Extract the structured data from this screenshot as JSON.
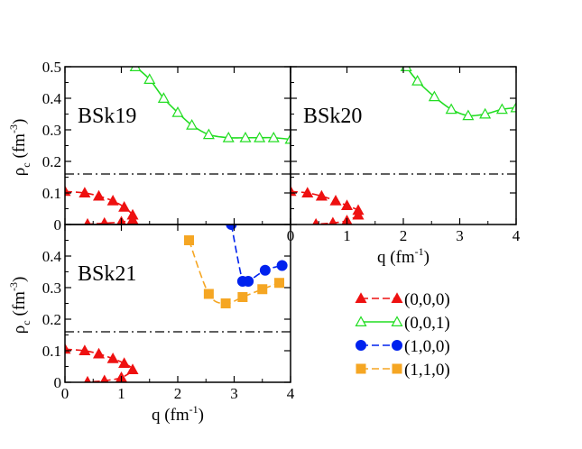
{
  "chart_data": [
    {
      "type": "line",
      "panel_label": "BSk19",
      "xlim": [
        0,
        4
      ],
      "ylim": [
        0,
        0.5
      ],
      "xticks": [
        "0",
        "1",
        "2",
        "3",
        "4"
      ],
      "yticks": [
        "0",
        "0.1",
        "0.2",
        "0.3",
        "0.4",
        "0.5"
      ],
      "ylabel": {
        "main": "ρ",
        "sub": "c",
        "unit": "(fm",
        "exp": "-3",
        "close": ")"
      },
      "reference_line": 0.16,
      "series": [
        {
          "name": "(0,0,0)",
          "color": "#ee1111",
          "marker": "triangle-filled",
          "dash": true,
          "x": [
            0.0,
            0.35,
            0.6,
            0.85,
            1.05,
            1.2,
            1.2,
            1.0,
            0.7,
            0.4
          ],
          "y": [
            0.105,
            0.1,
            0.09,
            0.075,
            0.055,
            0.03,
            0.015,
            0.008,
            0.004,
            0.001
          ]
        },
        {
          "name": "(0,0,1)",
          "color": "#22dd22",
          "marker": "triangle-open",
          "dash": false,
          "x": [
            1.25,
            1.5,
            1.75,
            2.0,
            2.25,
            2.55,
            2.9,
            3.2,
            3.45,
            3.7,
            4.0
          ],
          "y": [
            0.5,
            0.46,
            0.4,
            0.355,
            0.315,
            0.285,
            0.275,
            0.275,
            0.275,
            0.275,
            0.27
          ]
        }
      ]
    },
    {
      "type": "line",
      "panel_label": "BSk20",
      "xlim": [
        0,
        4
      ],
      "ylim": [
        0,
        0.5
      ],
      "xticks": [
        "0",
        "1",
        "2",
        "3",
        "4"
      ],
      "xlabel": {
        "main": "q (fm",
        "exp": "-1",
        "close": ")"
      },
      "reference_line": 0.16,
      "series": [
        {
          "name": "(0,0,0)",
          "color": "#ee1111",
          "marker": "triangle-filled",
          "dash": true,
          "x": [
            0.0,
            0.3,
            0.55,
            0.8,
            1.0,
            1.2,
            1.2,
            1.0,
            0.75,
            0.45
          ],
          "y": [
            0.105,
            0.1,
            0.09,
            0.075,
            0.06,
            0.045,
            0.03,
            0.012,
            0.005,
            0.001
          ]
        },
        {
          "name": "(0,0,1)",
          "color": "#22dd22",
          "marker": "triangle-open",
          "dash": false,
          "x": [
            2.05,
            2.25,
            2.55,
            2.85,
            3.15,
            3.45,
            3.75,
            4.0
          ],
          "y": [
            0.5,
            0.455,
            0.405,
            0.365,
            0.345,
            0.35,
            0.365,
            0.37
          ]
        }
      ]
    },
    {
      "type": "line",
      "panel_label": "BSk21",
      "xlim": [
        0,
        4
      ],
      "ylim": [
        0,
        0.5
      ],
      "xticks": [
        "0",
        "1",
        "2",
        "3",
        "4"
      ],
      "yticks": [
        "0",
        "0.1",
        "0.2",
        "0.3",
        "0.4"
      ],
      "xlabel": {
        "main": "q (fm",
        "exp": "-1",
        "close": ")"
      },
      "ylabel": {
        "main": "ρ",
        "sub": "c",
        "unit": "(fm",
        "exp": "-3",
        "close": ")"
      },
      "reference_line": 0.16,
      "series": [
        {
          "name": "(0,0,0)",
          "color": "#ee1111",
          "marker": "triangle-filled",
          "dash": true,
          "x": [
            0.0,
            0.35,
            0.6,
            0.85,
            1.05,
            1.2,
            1.0,
            0.7,
            0.4
          ],
          "y": [
            0.105,
            0.1,
            0.09,
            0.075,
            0.06,
            0.04,
            0.015,
            0.005,
            0.001
          ]
        },
        {
          "name": "(1,0,0)",
          "color": "#0022ee",
          "marker": "circle-filled",
          "dash": true,
          "x": [
            2.95,
            3.15,
            3.25,
            3.55,
            3.85
          ],
          "y": [
            0.5,
            0.32,
            0.32,
            0.355,
            0.37
          ]
        },
        {
          "name": "(1,1,0)",
          "color": "#f5a623",
          "marker": "square-filled",
          "dash": true,
          "x": [
            2.2,
            2.55,
            2.85,
            3.15,
            3.5,
            3.8
          ],
          "y": [
            0.45,
            0.28,
            0.25,
            0.27,
            0.295,
            0.315
          ]
        }
      ]
    }
  ],
  "legend": [
    {
      "label": "(0,0,0)",
      "color": "#ee1111",
      "marker": "triangle-filled",
      "dash": true
    },
    {
      "label": "(0,0,1)",
      "color": "#22dd22",
      "marker": "triangle-open",
      "dash": false
    },
    {
      "label": "(1,0,0)",
      "color": "#0022ee",
      "marker": "circle-filled",
      "dash": true
    },
    {
      "label": "(1,1,0)",
      "color": "#f5a623",
      "marker": "square-filled",
      "dash": true
    }
  ]
}
